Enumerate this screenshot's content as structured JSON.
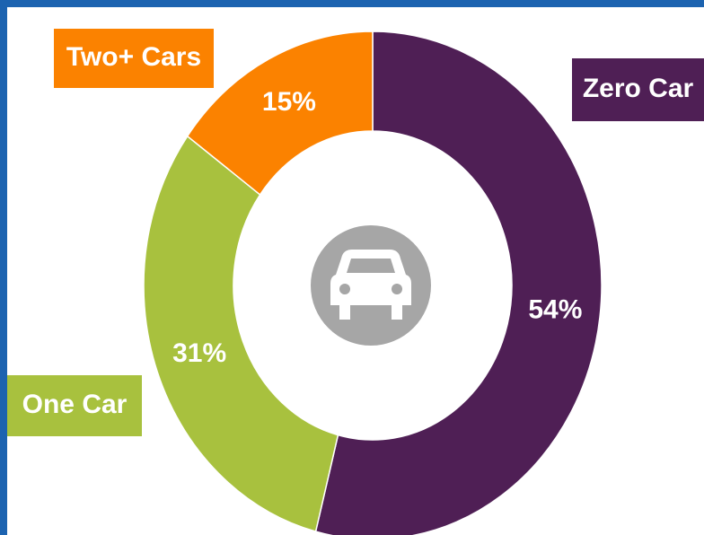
{
  "chart_data": {
    "type": "pie",
    "categories": [
      "Zero Car",
      "One Car",
      "Two+ Cars"
    ],
    "values": [
      54,
      31,
      15
    ],
    "value_labels": [
      "54%",
      "31%",
      "15%"
    ],
    "colors": [
      "#4f1f55",
      "#a8c13e",
      "#fb8200"
    ]
  }
}
